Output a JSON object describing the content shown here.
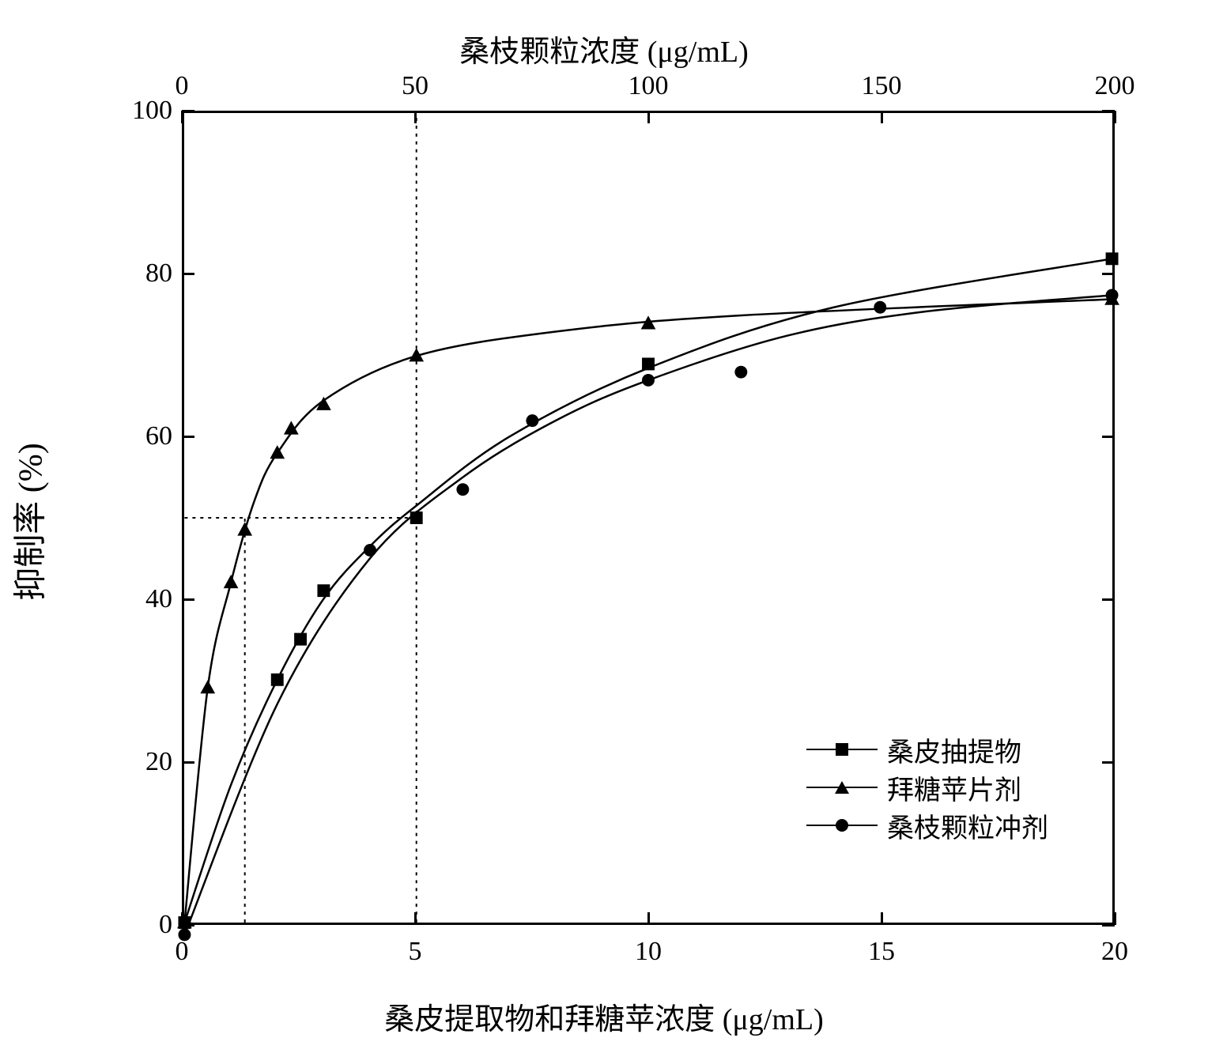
{
  "chart": {
    "type": "line-scatter",
    "background_color": "#ffffff",
    "top_axis_title": "桑枝颗粒浓度 (μg/mL)",
    "bottom_axis_title": "桑皮提取物和拜糖苹浓度 (μg/mL)",
    "y_axis_title": "抑制率 (%)",
    "title_fontsize": 38,
    "label_fontsize": 34,
    "ylabel_fontsize": 42,
    "plot_border_color": "#000000",
    "plot_border_width": 3,
    "tick_length_major": 16,
    "ylim": [
      0,
      100
    ],
    "ytick_step": 20,
    "yticks": [
      0,
      20,
      40,
      60,
      80,
      100
    ],
    "xlim_bottom": [
      0,
      20
    ],
    "xtick_bottom_step": 5,
    "xticks_bottom": [
      0,
      5,
      10,
      15,
      20
    ],
    "xlim_top": [
      0,
      200
    ],
    "xtick_top_step": 50,
    "xticks_top": [
      0,
      50,
      100,
      150,
      200
    ],
    "reference_lines": {
      "style": "dotted",
      "color": "#000000",
      "h_y": 50,
      "v1_x": 1.3,
      "v2_x": 5.0
    },
    "line_color": "#000000",
    "line_width": 2.5,
    "marker_size": 16,
    "marker_stroke": "#000000",
    "series": [
      {
        "key": "sangpi",
        "label": "桑皮抽提物",
        "marker": "square",
        "fill": "#000000",
        "axis": "bottom",
        "points": [
          {
            "x": 0,
            "y": 0
          },
          {
            "x": 2,
            "y": 30
          },
          {
            "x": 2.5,
            "y": 35
          },
          {
            "x": 3,
            "y": 41
          },
          {
            "x": 5,
            "y": 50
          },
          {
            "x": 10,
            "y": 69
          },
          {
            "x": 20,
            "y": 82
          }
        ],
        "fit": [
          {
            "x": 0,
            "y": 0
          },
          {
            "x": 1,
            "y": 17
          },
          {
            "x": 2,
            "y": 30
          },
          {
            "x": 3,
            "y": 40
          },
          {
            "x": 4,
            "y": 46.5
          },
          {
            "x": 5,
            "y": 51.5
          },
          {
            "x": 7,
            "y": 60
          },
          {
            "x": 10,
            "y": 68.5
          },
          {
            "x": 14,
            "y": 76
          },
          {
            "x": 20,
            "y": 82
          }
        ]
      },
      {
        "key": "baitang",
        "label": "拜糖苹片剂",
        "marker": "triangle",
        "fill": "#000000",
        "axis": "bottom",
        "points": [
          {
            "x": 0,
            "y": 0
          },
          {
            "x": 0.5,
            "y": 29
          },
          {
            "x": 1,
            "y": 42
          },
          {
            "x": 1.3,
            "y": 48.5
          },
          {
            "x": 2,
            "y": 58
          },
          {
            "x": 2.3,
            "y": 61
          },
          {
            "x": 3,
            "y": 64
          },
          {
            "x": 5,
            "y": 70
          },
          {
            "x": 10,
            "y": 74
          },
          {
            "x": 20,
            "y": 77
          }
        ],
        "fit": [
          {
            "x": 0,
            "y": 0
          },
          {
            "x": 0.5,
            "y": 29
          },
          {
            "x": 1,
            "y": 42
          },
          {
            "x": 1.5,
            "y": 52
          },
          {
            "x": 2,
            "y": 58
          },
          {
            "x": 3,
            "y": 64.5
          },
          {
            "x": 5,
            "y": 70
          },
          {
            "x": 8,
            "y": 73
          },
          {
            "x": 12,
            "y": 75
          },
          {
            "x": 20,
            "y": 77
          }
        ]
      },
      {
        "key": "sangzhi",
        "label": "桑枝颗粒冲剂",
        "marker": "circle",
        "fill": "#000000",
        "axis": "top",
        "points": [
          {
            "x": 0,
            "y": -1.5
          },
          {
            "x": 40,
            "y": 46
          },
          {
            "x": 60,
            "y": 53.5
          },
          {
            "x": 75,
            "y": 62
          },
          {
            "x": 100,
            "y": 67
          },
          {
            "x": 120,
            "y": 68
          },
          {
            "x": 150,
            "y": 76
          },
          {
            "x": 200,
            "y": 77.5
          }
        ],
        "fit": [
          {
            "x": 0,
            "y": -1.5
          },
          {
            "x": 20,
            "y": 27
          },
          {
            "x": 40,
            "y": 45
          },
          {
            "x": 60,
            "y": 55
          },
          {
            "x": 80,
            "y": 62
          },
          {
            "x": 100,
            "y": 67
          },
          {
            "x": 130,
            "y": 72.5
          },
          {
            "x": 160,
            "y": 75.5
          },
          {
            "x": 200,
            "y": 77.5
          }
        ]
      }
    ],
    "legend": {
      "position": "bottom-right-inside",
      "fontsize": 34,
      "items": [
        {
          "marker": "square",
          "label_key": "series.0.label"
        },
        {
          "marker": "triangle",
          "label_key": "series.1.label"
        },
        {
          "marker": "circle",
          "label_key": "series.2.label"
        }
      ]
    }
  }
}
